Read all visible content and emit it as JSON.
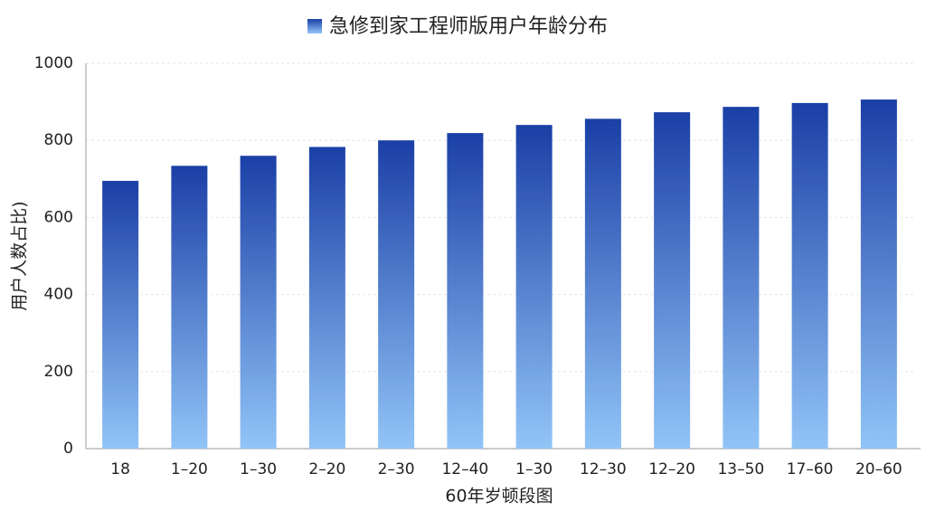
{
  "chart_data": {
    "type": "bar",
    "y_label": "用户人数占比)",
    "x_label": "60年岁顿段图",
    "categories": [
      "18",
      "1–20",
      "1–30",
      "2–20",
      "2–30",
      "12–40",
      "1–30",
      "12–30",
      "12–20",
      "13–50",
      "17–60",
      "20–60"
    ],
    "series": [
      {
        "name": "急修到家工程师版用户年龄分布",
        "color": "#1a3fa6",
        "values": [
          695,
          734,
          760,
          783,
          800,
          819,
          840,
          856,
          873,
          887,
          897,
          906
        ]
      }
    ],
    "gradient_bottom": "#92c4f7",
    "ylim": [
      0,
      1000
    ],
    "yticks": [
      0,
      200,
      400,
      600,
      800,
      1000
    ],
    "grid": true
  }
}
